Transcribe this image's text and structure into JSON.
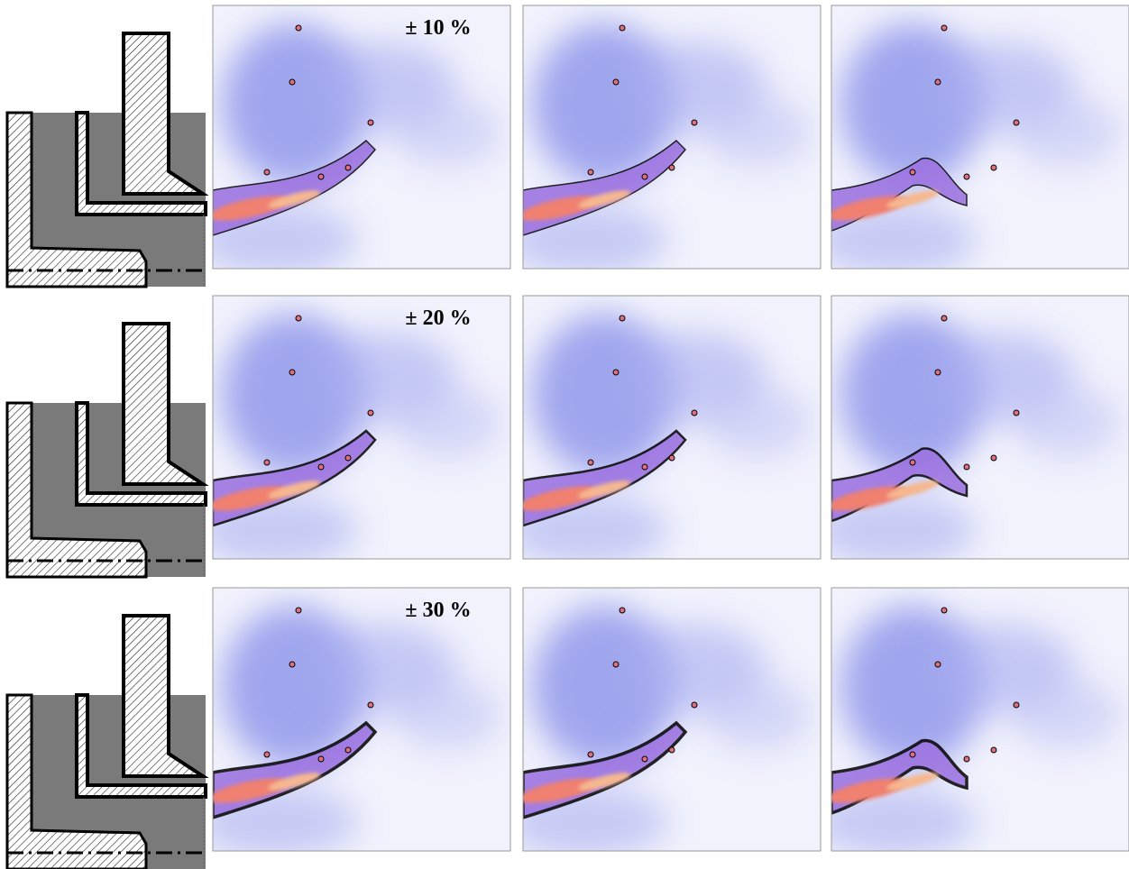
{
  "rows": [
    {
      "label": "± 10 %"
    },
    {
      "label": "± 20 %"
    },
    {
      "label": "± 30 %"
    }
  ]
}
